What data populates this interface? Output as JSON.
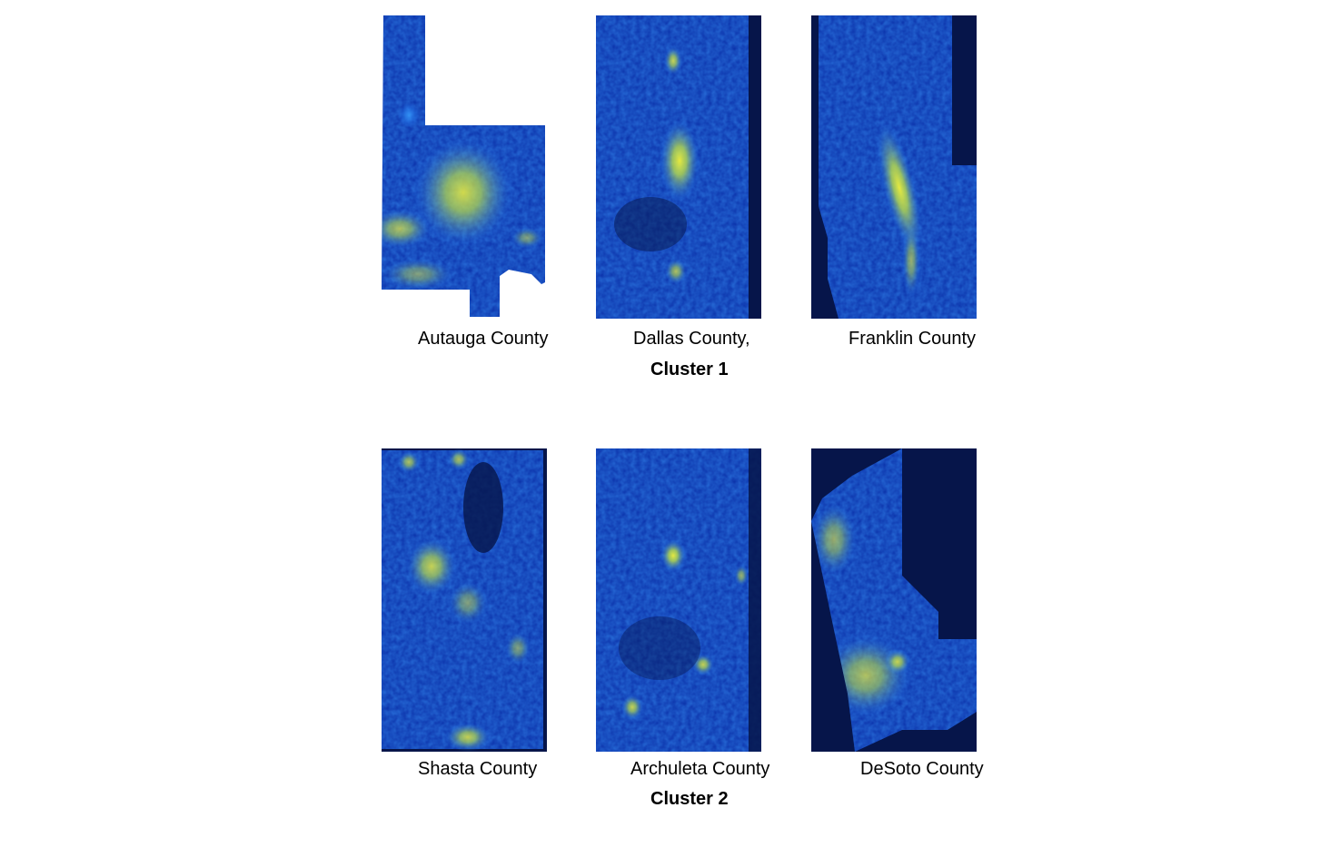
{
  "clusters": [
    {
      "title": "Cluster 1",
      "counties": [
        {
          "name": "Autauga County"
        },
        {
          "name": "Dallas County,"
        },
        {
          "name": "Franklin County"
        }
      ]
    },
    {
      "title": "Cluster 2",
      "counties": [
        {
          "name": "Shasta County"
        },
        {
          "name": "Archuleta County"
        },
        {
          "name": "DeSoto County"
        }
      ]
    }
  ],
  "colors": {
    "dark": "#06154a",
    "mid": "#0a3fd0",
    "bright": "#1f7bff",
    "glow": "#e6ee3c"
  }
}
